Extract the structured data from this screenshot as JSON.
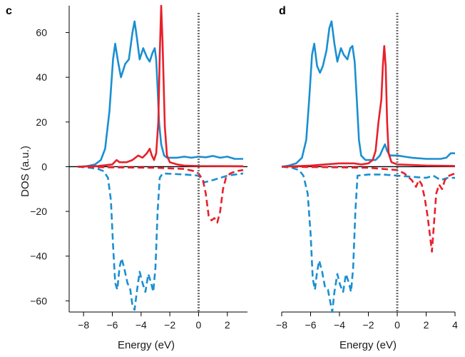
{
  "colors": {
    "blue": "#1a8fd1",
    "red": "#e8202a",
    "fermi": "#707070",
    "axis": "#000000"
  },
  "ylabel": "DOS (a.u.)",
  "chart_data": [
    {
      "type": "line",
      "panel": "c",
      "xlabel": "Energy (eV)",
      "xlim": [
        -9,
        3.4
      ],
      "ylim": [
        -65,
        72
      ],
      "xticks": [
        -8,
        -6,
        -4,
        -2,
        0,
        2
      ],
      "xtick_labels": [
        "−8",
        "−6",
        "−4",
        "−2",
        "0",
        "2"
      ],
      "yticks": [
        -60,
        -40,
        -20,
        0,
        20,
        40,
        60
      ],
      "ytick_labels": [
        "−60",
        "−40",
        "−20",
        "0",
        "20",
        "40",
        "60"
      ],
      "fermi_level": 0,
      "series": [
        {
          "name": "blue spin-up",
          "color": "blue",
          "style": "solid",
          "points": [
            [
              -8.4,
              0
            ],
            [
              -7.8,
              0.2
            ],
            [
              -7.2,
              1
            ],
            [
              -6.8,
              3
            ],
            [
              -6.5,
              8
            ],
            [
              -6.2,
              25
            ],
            [
              -5.95,
              48
            ],
            [
              -5.8,
              55
            ],
            [
              -5.6,
              47
            ],
            [
              -5.4,
              40
            ],
            [
              -5.1,
              46
            ],
            [
              -4.85,
              48
            ],
            [
              -4.6,
              60
            ],
            [
              -4.45,
              65
            ],
            [
              -4.3,
              58
            ],
            [
              -4.1,
              48
            ],
            [
              -3.85,
              53
            ],
            [
              -3.6,
              49
            ],
            [
              -3.4,
              47
            ],
            [
              -3.2,
              51
            ],
            [
              -3.05,
              53
            ],
            [
              -2.95,
              48
            ],
            [
              -2.85,
              35
            ],
            [
              -2.75,
              20
            ],
            [
              -2.6,
              10
            ],
            [
              -2.4,
              5
            ],
            [
              -2.2,
              4
            ],
            [
              -1.5,
              4
            ],
            [
              -1,
              4.5
            ],
            [
              -0.5,
              4
            ],
            [
              0,
              4.5
            ],
            [
              0.5,
              4.2
            ],
            [
              1,
              4.8
            ],
            [
              1.5,
              4
            ],
            [
              2,
              4.5
            ],
            [
              2.5,
              3.5
            ],
            [
              3.1,
              3.5
            ]
          ]
        },
        {
          "name": "red spin-up",
          "color": "red",
          "style": "solid",
          "points": [
            [
              -8.4,
              0
            ],
            [
              -7,
              0.3
            ],
            [
              -6,
              1
            ],
            [
              -5.7,
              3
            ],
            [
              -5.5,
              2
            ],
            [
              -5,
              2
            ],
            [
              -4.6,
              3
            ],
            [
              -4.2,
              5
            ],
            [
              -3.9,
              4
            ],
            [
              -3.6,
              6
            ],
            [
              -3.4,
              8
            ],
            [
              -3.25,
              5
            ],
            [
              -3.1,
              3
            ],
            [
              -2.95,
              6
            ],
            [
              -2.8,
              20
            ],
            [
              -2.7,
              50
            ],
            [
              -2.6,
              72
            ],
            [
              -2.5,
              55
            ],
            [
              -2.35,
              18
            ],
            [
              -2.2,
              5
            ],
            [
              -2,
              2
            ],
            [
              -1.5,
              1
            ],
            [
              -1,
              0.5
            ],
            [
              0,
              0.3
            ],
            [
              3.1,
              0.2
            ]
          ]
        },
        {
          "name": "blue spin-down",
          "color": "blue",
          "style": "dashed",
          "points": [
            [
              -8.4,
              0
            ],
            [
              -7.6,
              -0.5
            ],
            [
              -7,
              -1
            ],
            [
              -6.6,
              -2
            ],
            [
              -6.3,
              -5
            ],
            [
              -6.1,
              -15
            ],
            [
              -5.95,
              -35
            ],
            [
              -5.8,
              -52
            ],
            [
              -5.65,
              -55
            ],
            [
              -5.5,
              -45
            ],
            [
              -5.35,
              -41
            ],
            [
              -5.15,
              -46
            ],
            [
              -4.95,
              -52
            ],
            [
              -4.75,
              -55
            ],
            [
              -4.6,
              -62
            ],
            [
              -4.45,
              -64
            ],
            [
              -4.3,
              -56
            ],
            [
              -4.1,
              -47
            ],
            [
              -3.9,
              -52
            ],
            [
              -3.7,
              -56
            ],
            [
              -3.5,
              -48
            ],
            [
              -3.3,
              -52
            ],
            [
              -3.15,
              -56
            ],
            [
              -3,
              -45
            ],
            [
              -2.85,
              -20
            ],
            [
              -2.7,
              -5
            ],
            [
              -2.5,
              -3
            ],
            [
              -1,
              -3.5
            ],
            [
              0,
              -4
            ],
            [
              0.4,
              -7
            ],
            [
              1,
              -6
            ],
            [
              1.5,
              -5
            ],
            [
              2,
              -4
            ],
            [
              3.1,
              -3
            ]
          ]
        },
        {
          "name": "red spin-down",
          "color": "red",
          "style": "dashed",
          "points": [
            [
              -8.4,
              0
            ],
            [
              -6,
              -0.3
            ],
            [
              -3,
              -0.5
            ],
            [
              -1,
              -1
            ],
            [
              -0.3,
              -2
            ],
            [
              0,
              -3
            ],
            [
              0.3,
              -6
            ],
            [
              0.5,
              -12
            ],
            [
              0.7,
              -22
            ],
            [
              0.9,
              -24
            ],
            [
              1.1,
              -23
            ],
            [
              1.3,
              -25
            ],
            [
              1.5,
              -20
            ],
            [
              1.7,
              -10
            ],
            [
              1.9,
              -5
            ],
            [
              2.2,
              -3
            ],
            [
              2.6,
              -2
            ],
            [
              3.1,
              -1.5
            ]
          ]
        }
      ]
    },
    {
      "type": "line",
      "panel": "d",
      "xlabel": "Energy (eV)",
      "xlim": [
        -8,
        4
      ],
      "ylim": [
        -65,
        72
      ],
      "xticks": [
        -8,
        -6,
        -4,
        -2,
        0,
        2,
        4
      ],
      "xtick_labels": [
        "−8",
        "−6",
        "−4",
        "−2",
        "0",
        "2",
        "4"
      ],
      "yticks": [
        -60,
        -40,
        -20,
        0,
        20,
        40,
        60
      ],
      "fermi_level": 0,
      "series": [
        {
          "name": "blue spin-up",
          "color": "blue",
          "style": "solid",
          "points": [
            [
              -8,
              0
            ],
            [
              -7.5,
              0.5
            ],
            [
              -7,
              1.5
            ],
            [
              -6.6,
              4
            ],
            [
              -6.3,
              12
            ],
            [
              -6.1,
              30
            ],
            [
              -5.9,
              50
            ],
            [
              -5.75,
              55
            ],
            [
              -5.55,
              45
            ],
            [
              -5.35,
              42
            ],
            [
              -5.15,
              45
            ],
            [
              -4.9,
              52
            ],
            [
              -4.7,
              62
            ],
            [
              -4.55,
              65
            ],
            [
              -4.35,
              55
            ],
            [
              -4.15,
              47
            ],
            [
              -3.9,
              53
            ],
            [
              -3.7,
              50
            ],
            [
              -3.45,
              48
            ],
            [
              -3.25,
              53
            ],
            [
              -3.1,
              54
            ],
            [
              -2.95,
              47
            ],
            [
              -2.8,
              30
            ],
            [
              -2.65,
              12
            ],
            [
              -2.5,
              5
            ],
            [
              -2.2,
              3
            ],
            [
              -1.8,
              3
            ],
            [
              -1.5,
              3
            ],
            [
              -1.2,
              5
            ],
            [
              -1,
              8
            ],
            [
              -0.85,
              10
            ],
            [
              -0.7,
              7
            ],
            [
              -0.5,
              5
            ],
            [
              0,
              5
            ],
            [
              0.5,
              4.5
            ],
            [
              1,
              4
            ],
            [
              2,
              3.5
            ],
            [
              3,
              3.5
            ],
            [
              3.4,
              4
            ],
            [
              3.7,
              6
            ],
            [
              4,
              6
            ]
          ]
        },
        {
          "name": "red spin-up",
          "color": "red",
          "style": "solid",
          "points": [
            [
              -8,
              0
            ],
            [
              -6,
              0.5
            ],
            [
              -5,
              1
            ],
            [
              -4,
              1.5
            ],
            [
              -3,
              1.5
            ],
            [
              -2.5,
              1
            ],
            [
              -2,
              1.5
            ],
            [
              -1.7,
              3
            ],
            [
              -1.5,
              7
            ],
            [
              -1.3,
              20
            ],
            [
              -1.1,
              30
            ],
            [
              -1,
              45
            ],
            [
              -0.9,
              54
            ],
            [
              -0.8,
              45
            ],
            [
              -0.7,
              20
            ],
            [
              -0.6,
              6
            ],
            [
              -0.4,
              2
            ],
            [
              0,
              1
            ],
            [
              1,
              0.8
            ],
            [
              2,
              0.5
            ],
            [
              4,
              0.3
            ]
          ]
        },
        {
          "name": "blue spin-down",
          "color": "blue",
          "style": "dashed",
          "points": [
            [
              -8,
              0
            ],
            [
              -7.3,
              -0.5
            ],
            [
              -6.8,
              -1.5
            ],
            [
              -6.5,
              -4
            ],
            [
              -6.2,
              -12
            ],
            [
              -6,
              -30
            ],
            [
              -5.85,
              -50
            ],
            [
              -5.7,
              -55
            ],
            [
              -5.55,
              -47
            ],
            [
              -5.4,
              -42
            ],
            [
              -5.2,
              -47
            ],
            [
              -5,
              -54
            ],
            [
              -4.8,
              -55
            ],
            [
              -4.65,
              -60
            ],
            [
              -4.5,
              -65
            ],
            [
              -4.35,
              -56
            ],
            [
              -4.15,
              -48
            ],
            [
              -3.95,
              -53
            ],
            [
              -3.75,
              -56
            ],
            [
              -3.55,
              -48
            ],
            [
              -3.35,
              -52
            ],
            [
              -3.2,
              -56
            ],
            [
              -3.05,
              -45
            ],
            [
              -2.9,
              -20
            ],
            [
              -2.75,
              -4
            ],
            [
              -2,
              -3.5
            ],
            [
              -1,
              -3.5
            ],
            [
              0,
              -4
            ],
            [
              1,
              -4.5
            ],
            [
              2,
              -5
            ],
            [
              2.5,
              -4
            ],
            [
              3,
              -6
            ],
            [
              3.5,
              -5
            ],
            [
              4,
              -5
            ]
          ]
        },
        {
          "name": "red spin-down",
          "color": "red",
          "style": "dashed",
          "points": [
            [
              -8,
              0
            ],
            [
              -4,
              -0.3
            ],
            [
              -2,
              -0.5
            ],
            [
              -1,
              -1
            ],
            [
              0,
              -1.5
            ],
            [
              0.5,
              -3
            ],
            [
              1,
              -6
            ],
            [
              1.3,
              -9
            ],
            [
              1.5,
              -6
            ],
            [
              1.7,
              -8
            ],
            [
              1.9,
              -14
            ],
            [
              2.1,
              -22
            ],
            [
              2.25,
              -30
            ],
            [
              2.4,
              -38
            ],
            [
              2.55,
              -25
            ],
            [
              2.7,
              -12
            ],
            [
              2.9,
              -8
            ],
            [
              3.1,
              -10
            ],
            [
              3.3,
              -6
            ],
            [
              3.6,
              -4
            ],
            [
              4,
              -3
            ]
          ]
        }
      ]
    }
  ],
  "panels": [
    {
      "label": "c",
      "xlabel": "Energy (eV)"
    },
    {
      "label": "d",
      "xlabel": "Energy (eV)"
    }
  ]
}
